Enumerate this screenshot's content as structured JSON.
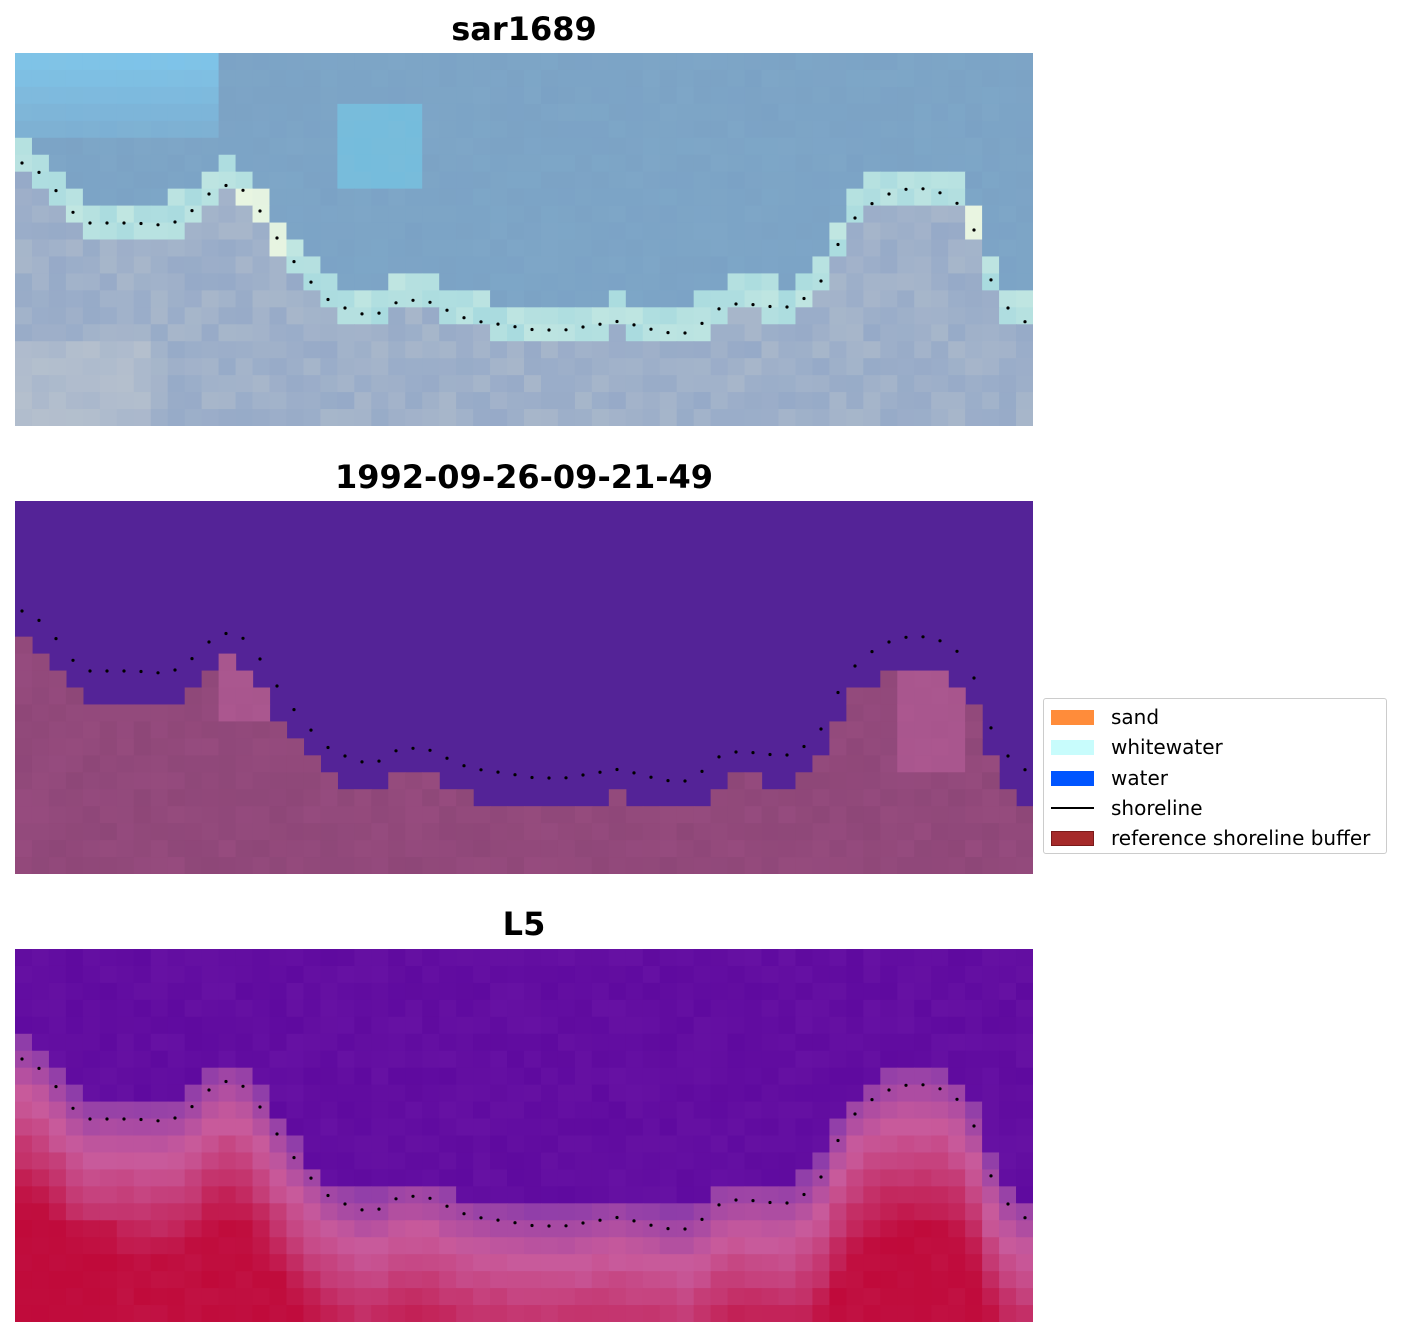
{
  "panels": [
    {
      "title": "sar1689",
      "kind": "rgb-image"
    },
    {
      "title": "1992-09-26-09-21-49",
      "kind": "classified-image"
    },
    {
      "title": "L5",
      "kind": "index-image"
    }
  ],
  "legend": {
    "items": [
      {
        "label": "sand",
        "type": "patch",
        "color": "#ff8c3a"
      },
      {
        "label": "whitewater",
        "type": "patch",
        "color": "#c8fcfc"
      },
      {
        "label": "water",
        "type": "patch",
        "color": "#0055ff"
      },
      {
        "label": "shoreline",
        "type": "line",
        "color": "#000000"
      },
      {
        "label": "reference shoreline buffer",
        "type": "patch",
        "color": "#a52a2a"
      }
    ]
  },
  "colors": {
    "rgb_sky": "#7fa3c4",
    "rgb_light": "#7dcff7",
    "classified_water": "#542397",
    "classified_buffer": "#8e4778",
    "index_low": "#5f0a9f",
    "index_high": "#c00a3a"
  }
}
